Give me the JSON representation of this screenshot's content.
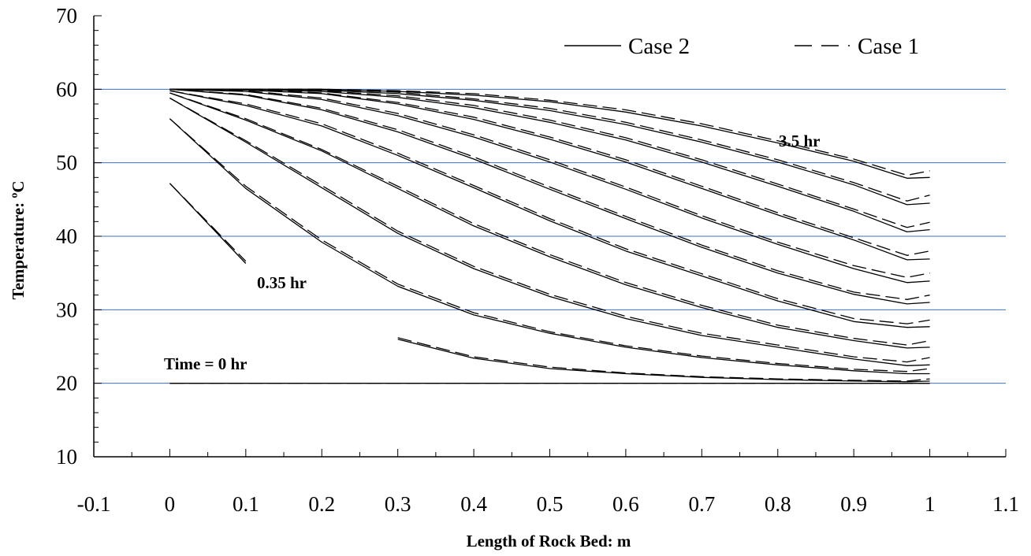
{
  "chart_data": {
    "type": "line",
    "xlabel": "Length of Rock Bed: m",
    "ylabel": "Temperature: ºC",
    "xlim": [
      -0.1,
      1.1
    ],
    "ylim": [
      10,
      70
    ],
    "x_ticks": [
      "-0.1",
      "0",
      "0.1",
      "0.2",
      "0.3",
      "0.4",
      "0.5",
      "0.6",
      "0.7",
      "0.8",
      "0.9",
      "1",
      "1.1"
    ],
    "y_ticks": [
      "10",
      "20",
      "30",
      "40",
      "50",
      "60",
      "70"
    ],
    "grid": "horizontal",
    "colors": {
      "grid": "#3b6fc4",
      "line": "#000000"
    },
    "legend": [
      {
        "name": "Case 2",
        "style": "solid"
      },
      {
        "name": "Case 1",
        "style": "dashed"
      }
    ],
    "legend_position": "top-right",
    "annotations": [
      {
        "text": "Time = 0 hr",
        "x": 0.0,
        "y": 22.5
      },
      {
        "text": "0.35 hr",
        "x": 0.12,
        "y": 32.8
      },
      {
        "text": "3.5 hr",
        "x": 0.78,
        "y": 52.5
      }
    ],
    "x": [
      0,
      0.1,
      0.2,
      0.3,
      0.4,
      0.5,
      0.6,
      0.7,
      0.8,
      0.9,
      0.97,
      1.0
    ],
    "series": [
      {
        "style": "solid",
        "values": [
          20,
          20,
          20,
          20,
          20,
          20,
          20,
          20,
          20,
          20,
          20,
          20
        ]
      },
      {
        "style": "dashed",
        "values": [
          20,
          20,
          20,
          20,
          20,
          20,
          20,
          20,
          20,
          20,
          20,
          20
        ]
      },
      {
        "style": "solid",
        "values": [
          47.2,
          36.3,
          null,
          null,
          null,
          null,
          null,
          null,
          null,
          null,
          null,
          null
        ]
      },
      {
        "style": "dashed",
        "values": [
          47.2,
          36.6,
          null,
          null,
          null,
          null,
          null,
          null,
          null,
          null,
          null,
          null
        ]
      },
      {
        "style": "solid",
        "values": [
          null,
          null,
          null,
          26.0,
          23.4,
          22.0,
          21.3,
          20.8,
          20.5,
          20.3,
          20.2,
          20.3
        ]
      },
      {
        "style": "dashed",
        "values": [
          null,
          null,
          null,
          26.2,
          23.6,
          22.2,
          21.4,
          20.9,
          20.6,
          20.4,
          20.3,
          20.6
        ]
      },
      {
        "style": "solid",
        "values": [
          56.0,
          46.5,
          39.2,
          33.2,
          29.3,
          26.8,
          24.9,
          23.5,
          22.5,
          21.7,
          21.3,
          21.3
        ]
      },
      {
        "style": "dashed",
        "values": [
          56.0,
          46.8,
          39.5,
          33.5,
          29.6,
          27.0,
          25.1,
          23.7,
          22.7,
          21.9,
          21.6,
          22.0
        ]
      },
      {
        "style": "solid",
        "values": [
          58.8,
          52.8,
          46.6,
          40.4,
          35.6,
          31.8,
          28.8,
          26.5,
          24.9,
          23.3,
          22.4,
          22.5
        ]
      },
      {
        "style": "dashed",
        "values": [
          58.8,
          53.0,
          46.9,
          40.7,
          35.9,
          32.1,
          29.1,
          26.8,
          25.2,
          23.6,
          22.9,
          23.5
        ]
      },
      {
        "style": "solid",
        "values": [
          59.5,
          55.8,
          51.6,
          46.5,
          41.4,
          37.2,
          33.4,
          30.3,
          27.6,
          25.8,
          24.8,
          24.9
        ]
      },
      {
        "style": "dashed",
        "values": [
          59.5,
          56.0,
          51.8,
          46.8,
          41.7,
          37.5,
          33.7,
          30.6,
          27.9,
          26.1,
          25.2,
          25.8
        ]
      },
      {
        "style": "solid",
        "values": [
          59.8,
          57.8,
          55.0,
          51.0,
          46.6,
          42.1,
          38.0,
          34.6,
          31.2,
          28.4,
          27.6,
          27.7
        ]
      },
      {
        "style": "dashed",
        "values": [
          59.8,
          58.0,
          55.3,
          51.3,
          46.9,
          42.4,
          38.3,
          34.9,
          31.5,
          28.8,
          28.1,
          28.6
        ]
      },
      {
        "style": "solid",
        "values": [
          60.0,
          59.2,
          57.2,
          54.2,
          50.5,
          46.4,
          42.4,
          38.5,
          35.0,
          32.1,
          30.8,
          31.0
        ]
      },
      {
        "style": "dashed",
        "values": [
          60.0,
          59.3,
          57.4,
          54.5,
          50.8,
          46.7,
          42.7,
          38.8,
          35.3,
          32.4,
          31.4,
          32.0
        ]
      },
      {
        "style": "solid",
        "values": [
          60.0,
          59.7,
          58.6,
          56.4,
          53.5,
          50.1,
          46.4,
          42.5,
          38.9,
          35.6,
          33.7,
          33.9
        ]
      },
      {
        "style": "dashed",
        "values": [
          60.0,
          59.8,
          58.8,
          56.7,
          53.8,
          50.4,
          46.7,
          42.8,
          39.2,
          36.0,
          34.4,
          35.0
        ]
      },
      {
        "style": "solid",
        "values": [
          60.0,
          59.9,
          59.4,
          58.0,
          55.9,
          53.2,
          50.1,
          46.5,
          42.9,
          39.5,
          36.8,
          36.9
        ]
      },
      {
        "style": "dashed",
        "values": [
          60.0,
          60.0,
          59.5,
          58.2,
          56.2,
          53.5,
          50.4,
          46.8,
          43.2,
          39.8,
          37.4,
          38.0
        ]
      },
      {
        "style": "solid",
        "values": [
          60.0,
          60.0,
          59.7,
          58.9,
          57.5,
          55.5,
          53.1,
          50.1,
          46.8,
          43.4,
          40.6,
          40.9
        ]
      },
      {
        "style": "dashed",
        "values": [
          60.0,
          60.0,
          59.8,
          59.1,
          57.8,
          55.8,
          53.4,
          50.4,
          47.1,
          43.7,
          41.2,
          41.9
        ]
      },
      {
        "style": "solid",
        "values": [
          60.0,
          60.0,
          59.9,
          59.4,
          58.5,
          57.1,
          55.2,
          52.8,
          50.1,
          47.0,
          44.3,
          44.5
        ]
      },
      {
        "style": "dashed",
        "values": [
          60.0,
          60.0,
          60.0,
          59.6,
          58.7,
          57.4,
          55.5,
          53.1,
          50.4,
          47.3,
          44.8,
          45.6
        ]
      },
      {
        "style": "solid",
        "values": [
          60.0,
          60.0,
          60.0,
          59.7,
          59.2,
          58.3,
          56.9,
          55.0,
          52.7,
          50.2,
          47.9,
          48.0
        ]
      },
      {
        "style": "dashed",
        "values": [
          60.0,
          60.0,
          60.0,
          59.8,
          59.4,
          58.5,
          57.2,
          55.3,
          53.0,
          50.5,
          48.3,
          48.9
        ]
      }
    ]
  }
}
